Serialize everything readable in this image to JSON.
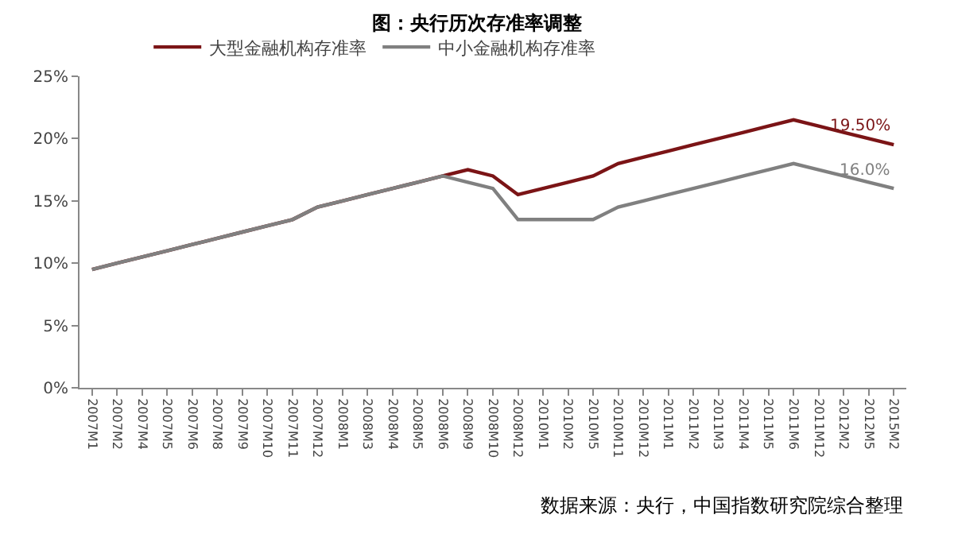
{
  "chart_data": {
    "type": "line",
    "title": "图：央行历次存准率调整",
    "categories": [
      "2007M1",
      "2007M2",
      "2007M4",
      "2007M5",
      "2007M6",
      "2007M8",
      "2007M9",
      "2007M10",
      "2007M11",
      "2007M12",
      "2008M1",
      "2008M3",
      "2008M4",
      "2008M5",
      "2008M6",
      "2008M9",
      "2008M10",
      "2008M12",
      "2010M1",
      "2010M2",
      "2010M5",
      "2010M11",
      "2010M12",
      "2011M1",
      "2011M2",
      "2011M3",
      "2011M4",
      "2011M5",
      "2011M6",
      "2011M12",
      "2012M2",
      "2012M5",
      "2015M2"
    ],
    "series": [
      {
        "name": "大型金融机构存准率",
        "color": "#7b1416",
        "values": [
          9.5,
          10,
          10.5,
          11,
          11.5,
          12,
          12.5,
          13,
          13.5,
          14.5,
          15,
          15.5,
          16,
          16.5,
          17,
          17.5,
          17,
          15.5,
          16,
          16.5,
          17,
          18,
          18.5,
          19,
          19.5,
          20,
          20.5,
          21,
          21.5,
          21,
          20.5,
          20,
          19.5
        ]
      },
      {
        "name": "中小金融机构存准率",
        "color": "#808080",
        "values": [
          9.5,
          10,
          10.5,
          11,
          11.5,
          12,
          12.5,
          13,
          13.5,
          14.5,
          15,
          15.5,
          16,
          16.5,
          17,
          16.5,
          16,
          13.5,
          13.5,
          13.5,
          13.5,
          14.5,
          15,
          15.5,
          16,
          16.5,
          17,
          17.5,
          18,
          17.5,
          17,
          16.5,
          16
        ]
      }
    ],
    "ylim": [
      0,
      25
    ],
    "yticks": [
      {
        "value": 0,
        "label": "0%"
      },
      {
        "value": 5,
        "label": "5%"
      },
      {
        "value": 10,
        "label": "10%"
      },
      {
        "value": 15,
        "label": "15%"
      },
      {
        "value": 20,
        "label": "20%"
      },
      {
        "value": 25,
        "label": "25%"
      }
    ],
    "grid": false,
    "legend": "top",
    "marker": "none",
    "line_style": "solid",
    "annotations": [
      {
        "text": "19.50%",
        "x": "2015M2",
        "y": 19.5
      },
      {
        "text": "16.0%",
        "x": "2015M2",
        "y": 16
      },
      "数据来源：央行，中国指数研究院综合整理"
    ]
  }
}
